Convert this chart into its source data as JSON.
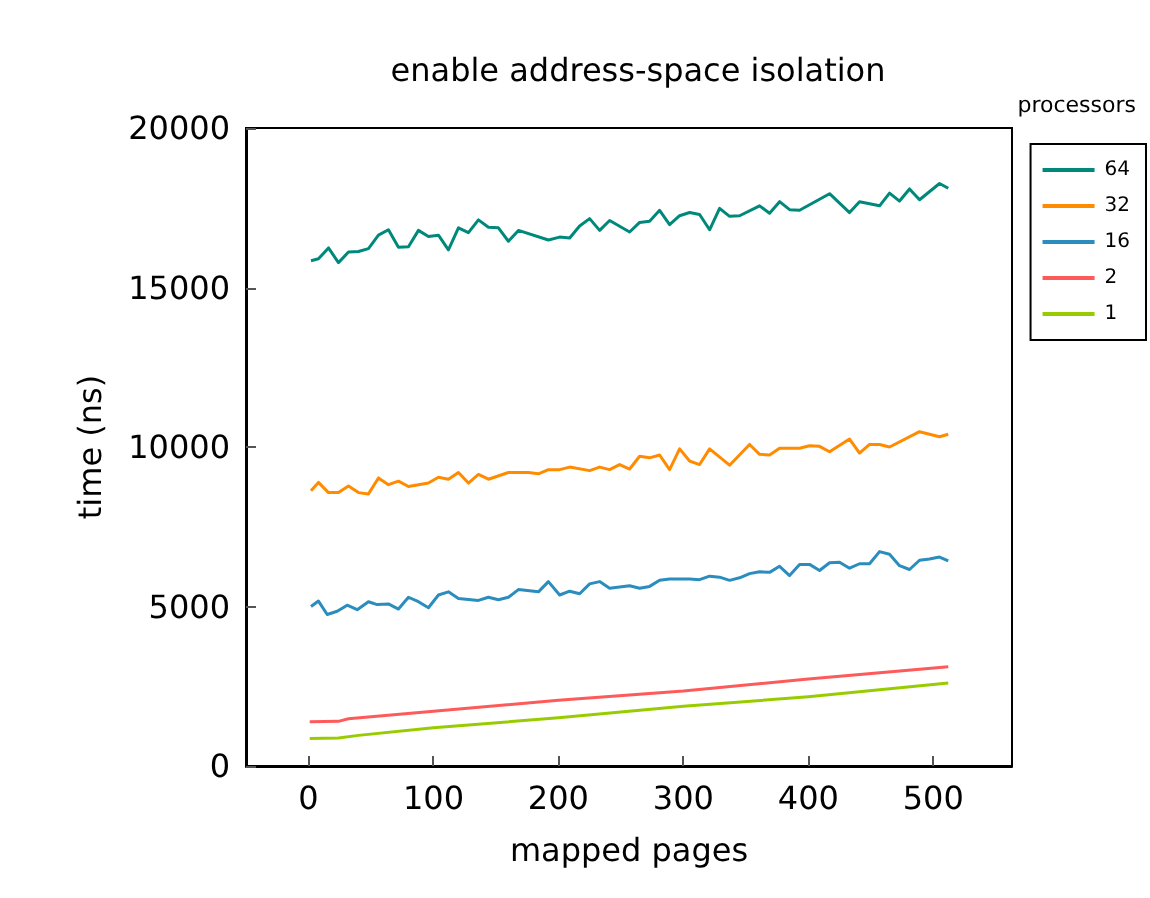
{
  "chart_data": {
    "type": "line",
    "title": "enable address-space isolation",
    "xlabel": "mapped pages",
    "ylabel": "time (ns)",
    "legend_title": "processors",
    "legend": "top right",
    "grid": false,
    "marker": "none",
    "line_style": "solid",
    "xlim": [
      -50,
      563
    ],
    "xticks": [
      0,
      100,
      200,
      300,
      400,
      500
    ],
    "ylim": [
      0,
      20000
    ],
    "yticks": [
      0,
      5000,
      10000,
      15000,
      20000
    ],
    "series": [
      {
        "name": "64",
        "color": "#00897b",
        "x": [
          2,
          8,
          16,
          24,
          32,
          40,
          48,
          56,
          64,
          72,
          80,
          88,
          96,
          104,
          112,
          120,
          128,
          136,
          144,
          152,
          160,
          168,
          192,
          201,
          209,
          217,
          225,
          233,
          241,
          257,
          265,
          273,
          281,
          289,
          297,
          305,
          313,
          321,
          329,
          337,
          345,
          361,
          369,
          377,
          385,
          393,
          417,
          433,
          441,
          457,
          465,
          473,
          481,
          489,
          505,
          512
        ],
        "values": [
          15840,
          15900,
          16240,
          15780,
          16110,
          16130,
          16220,
          16640,
          16810,
          16260,
          16280,
          16790,
          16600,
          16640,
          16180,
          16870,
          16720,
          17120,
          16890,
          16870,
          16450,
          16790,
          16490,
          16580,
          16550,
          16930,
          17160,
          16790,
          17100,
          16740,
          17040,
          17080,
          17420,
          16970,
          17250,
          17350,
          17290,
          16810,
          17480,
          17230,
          17250,
          17560,
          17330,
          17690,
          17440,
          17420,
          17940,
          17350,
          17690,
          17560,
          17960,
          17710,
          18090,
          17750,
          18260,
          18110
        ]
      },
      {
        "name": "32",
        "color": "#ff8c00",
        "x": [
          2,
          8,
          16,
          24,
          32,
          40,
          48,
          56,
          64,
          72,
          80,
          96,
          104,
          112,
          120,
          128,
          136,
          144,
          160,
          176,
          184,
          192,
          201,
          209,
          225,
          233,
          241,
          249,
          257,
          265,
          273,
          281,
          289,
          297,
          305,
          313,
          321,
          337,
          353,
          361,
          369,
          377,
          393,
          401,
          409,
          417,
          433,
          441,
          449,
          457,
          465,
          489,
          505,
          512
        ],
        "values": [
          8630,
          8890,
          8570,
          8570,
          8780,
          8570,
          8530,
          9030,
          8820,
          8930,
          8760,
          8870,
          9050,
          8990,
          9200,
          8870,
          9140,
          8990,
          9200,
          9200,
          9160,
          9290,
          9290,
          9370,
          9260,
          9370,
          9290,
          9450,
          9310,
          9710,
          9660,
          9750,
          9290,
          9940,
          9560,
          9450,
          9940,
          9430,
          10080,
          9770,
          9750,
          9960,
          9960,
          10040,
          10020,
          9850,
          10250,
          9810,
          10080,
          10080,
          10000,
          10480,
          10320,
          10400
        ]
      },
      {
        "name": "16",
        "color": "#2b8cbe",
        "x": [
          2,
          8,
          15,
          23,
          31,
          39,
          48,
          55,
          64,
          72,
          80,
          88,
          96,
          104,
          112,
          120,
          136,
          144,
          152,
          160,
          168,
          184,
          192,
          201,
          209,
          217,
          225,
          233,
          241,
          257,
          265,
          273,
          281,
          289,
          305,
          313,
          321,
          329,
          337,
          345,
          353,
          361,
          369,
          377,
          385,
          393,
          401,
          409,
          417,
          425,
          433,
          441,
          449,
          457,
          465,
          473,
          481,
          489,
          497,
          505,
          512
        ],
        "values": [
          5000,
          5170,
          4750,
          4850,
          5040,
          4900,
          5150,
          5060,
          5080,
          4920,
          5290,
          5150,
          4960,
          5360,
          5460,
          5250,
          5190,
          5290,
          5210,
          5290,
          5530,
          5460,
          5780,
          5360,
          5480,
          5400,
          5710,
          5780,
          5570,
          5650,
          5570,
          5630,
          5820,
          5860,
          5860,
          5840,
          5950,
          5920,
          5820,
          5900,
          6030,
          6090,
          6070,
          6260,
          5970,
          6320,
          6320,
          6130,
          6370,
          6390,
          6200,
          6340,
          6340,
          6720,
          6640,
          6280,
          6160,
          6450,
          6490,
          6550,
          6430
        ]
      },
      {
        "name": "2",
        "color": "#ff5a5a",
        "x": [
          1,
          24,
          32,
          100,
          200,
          300,
          400,
          512
        ],
        "values": [
          1390,
          1400,
          1480,
          1720,
          2060,
          2350,
          2730,
          3110
        ]
      },
      {
        "name": "1",
        "color": "#99cc00",
        "x": [
          1,
          24,
          40,
          100,
          200,
          300,
          400,
          512
        ],
        "values": [
          860,
          880,
          960,
          1200,
          1510,
          1870,
          2170,
          2600
        ]
      }
    ]
  }
}
